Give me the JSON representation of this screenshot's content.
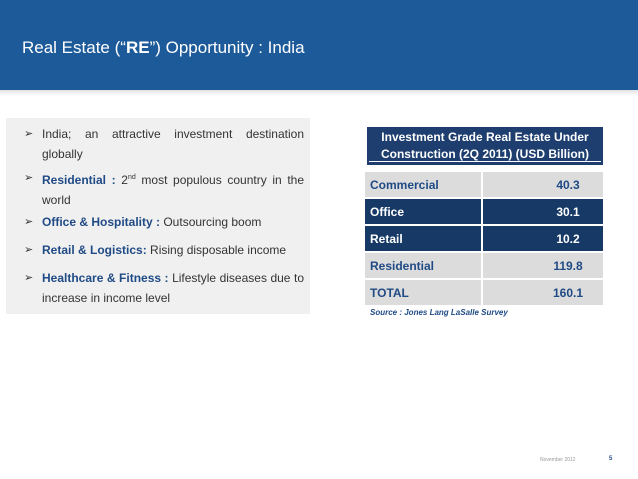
{
  "header": {
    "title_pre": "Real Estate (“",
    "title_bold": "RE",
    "title_post": "”) Opportunity : India"
  },
  "bullets": [
    {
      "keyword": "",
      "text": "India; an attractive investment destination globally"
    },
    {
      "keyword": "Residential :",
      "text_pre": " 2",
      "sup": "nd",
      "text": " most populous country in the world"
    },
    {
      "keyword": "Office & Hospitality :",
      "text": " Outsourcing boom"
    },
    {
      "keyword": "Retail & Logistics:",
      "text": " Rising disposable income"
    },
    {
      "keyword": "Healthcare & Fitness :",
      "text": " Lifestyle diseases due to increase in income level"
    }
  ],
  "table": {
    "title": "Investment Grade Real Estate Under Construction (2Q 2011) (USD Billion)",
    "rows": [
      {
        "label": "Commercial",
        "value": "40.3"
      },
      {
        "label": "Office",
        "value": "30.1"
      },
      {
        "label": "Retail",
        "value": "10.2"
      },
      {
        "label": "Residential",
        "value": "119.8"
      },
      {
        "label": "TOTAL",
        "value": "160.1"
      }
    ],
    "source": "Source : Jones Lang LaSalle Survey"
  },
  "footer": {
    "date": "November 2012",
    "page": "5"
  },
  "colors": {
    "header_bg": "#1d5a9a",
    "table_dark": "#163966",
    "table_light": "#dcdcdc",
    "keyword": "#1f4a85"
  }
}
